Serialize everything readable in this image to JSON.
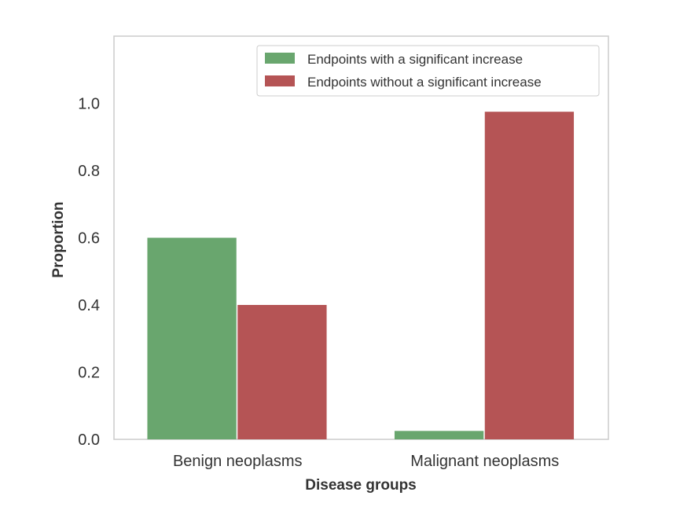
{
  "chart_data": {
    "type": "bar",
    "title": "",
    "xlabel": "Disease groups",
    "ylabel": "Proportion",
    "categories": [
      "Benign neoplasms",
      "Malignant neoplasms"
    ],
    "series": [
      {
        "name": "Endpoints with a significant increase",
        "color": "#69a66e",
        "values": [
          0.6,
          0.025
        ]
      },
      {
        "name": "Endpoints without a significant increase",
        "color": "#b55455",
        "values": [
          0.4,
          0.975
        ]
      }
    ],
    "ylim": [
      0,
      1.2
    ],
    "yticks": [
      "0.0",
      "0.2",
      "0.4",
      "0.6",
      "0.8",
      "1.0"
    ],
    "ytick_values": [
      0,
      0.2,
      0.4,
      0.6,
      0.8,
      1.0
    ],
    "grid": false,
    "legend_position": "top-right"
  }
}
